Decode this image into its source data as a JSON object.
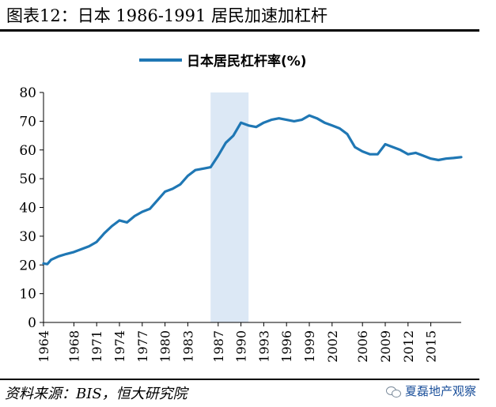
{
  "figure_title": "图表12：日本 1986-1991 居民加速加杠杆",
  "source": "资料来源：BIS，恒大研究院",
  "watermark_text": "夏磊地产观察",
  "colors": {
    "line": "#1f77b4",
    "shade": "#dce8f5",
    "axis": "#000000"
  },
  "chart_data": {
    "type": "line",
    "title": "",
    "xlabel": "",
    "ylabel": "",
    "ylim": [
      0,
      80
    ],
    "yticks": [
      0,
      10,
      20,
      30,
      40,
      50,
      60,
      70,
      80
    ],
    "xlim": [
      1964,
      2019
    ],
    "xtick_labels": [
      "1964",
      "1968",
      "1971",
      "1974",
      "1977",
      "1980",
      "1983",
      "1987",
      "1990",
      "1993",
      "1996",
      "1999",
      "2002",
      "2006",
      "2009",
      "2012",
      "2015"
    ],
    "legend": {
      "position": "top-center",
      "entries": [
        "日本居民杠杆率(%)"
      ]
    },
    "shaded_region": {
      "x_start": 1986,
      "x_end": 1991
    },
    "grid": false,
    "series": [
      {
        "name": "日本居民杠杆率(%)",
        "x": [
          1964,
          1964.5,
          1965,
          1966,
          1967,
          1968,
          1969,
          1970,
          1971,
          1972,
          1973,
          1974,
          1975,
          1976,
          1977,
          1978,
          1979,
          1980,
          1981,
          1982,
          1983,
          1984,
          1985,
          1986,
          1987,
          1988,
          1989,
          1990,
          1991,
          1992,
          1993,
          1994,
          1995,
          1996,
          1997,
          1998,
          1999,
          2000,
          2001,
          2002,
          2003,
          2004,
          2005,
          2006,
          2007,
          2008,
          2009,
          2010,
          2011,
          2012,
          2013,
          2014,
          2015,
          2016,
          2017,
          2018,
          2019
        ],
        "values": [
          20.5,
          20.3,
          21.8,
          23.0,
          23.8,
          24.5,
          25.5,
          26.5,
          28.0,
          31.0,
          33.5,
          35.5,
          34.8,
          37.0,
          38.5,
          39.5,
          42.5,
          45.5,
          46.5,
          48.0,
          51.0,
          53.0,
          53.5,
          54.0,
          58.0,
          62.5,
          65.0,
          69.5,
          68.5,
          68.0,
          69.5,
          70.5,
          71.0,
          70.5,
          70.0,
          70.5,
          72.0,
          71.0,
          69.5,
          68.5,
          67.5,
          65.5,
          61.0,
          59.5,
          58.5,
          58.5,
          62.0,
          61.0,
          60.0,
          58.5,
          59.0,
          58.0,
          57.0,
          56.5,
          57.0,
          57.2,
          57.5
        ]
      }
    ]
  }
}
